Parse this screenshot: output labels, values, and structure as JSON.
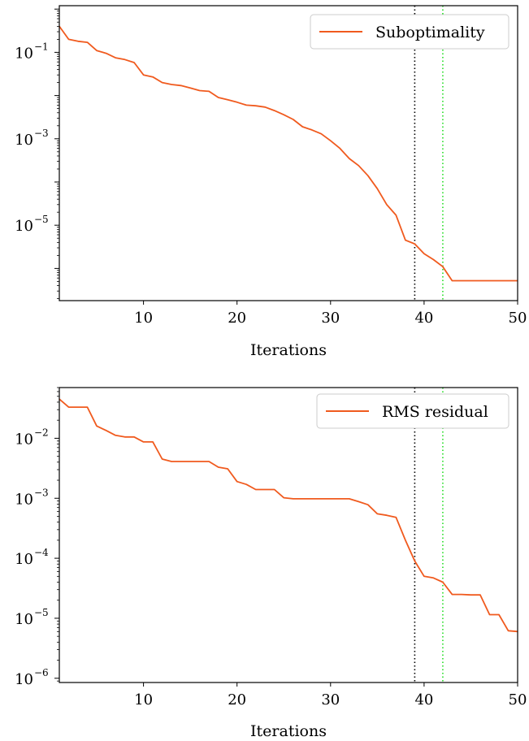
{
  "chart_data": [
    {
      "type": "line",
      "xlabel": "Iterations",
      "ylabel": "",
      "xlim": [
        1,
        50
      ],
      "ylim": [
        1.8e-07,
        1.2
      ],
      "yscale": "log",
      "xticks": [
        10,
        20,
        30,
        40,
        50
      ],
      "yticks": [
        {
          "base": "10",
          "exp": "−1",
          "value": 0.1
        },
        {
          "base": "10",
          "exp": "−3",
          "value": 0.001
        },
        {
          "base": "10",
          "exp": "−5",
          "value": 1e-05
        }
      ],
      "grid": false,
      "legend": "upper right",
      "vlines": [
        {
          "x": 39,
          "color": "#000000",
          "style": "dotted"
        },
        {
          "x": 42,
          "color": "#22dd22",
          "style": "dotted"
        }
      ],
      "series": [
        {
          "name": "Suboptimality",
          "color": "#f05a1e",
          "x": [
            1,
            2,
            3,
            4,
            5,
            6,
            7,
            8,
            9,
            10,
            11,
            12,
            13,
            14,
            15,
            16,
            17,
            18,
            19,
            20,
            21,
            22,
            23,
            24,
            25,
            26,
            27,
            28,
            29,
            30,
            31,
            32,
            33,
            34,
            35,
            36,
            37,
            38,
            39,
            40,
            41,
            42,
            43,
            44,
            45,
            46,
            47,
            48,
            49,
            50
          ],
          "values": [
            0.4,
            0.2,
            0.18,
            0.17,
            0.11,
            0.095,
            0.075,
            0.068,
            0.058,
            0.03,
            0.027,
            0.02,
            0.018,
            0.017,
            0.015,
            0.013,
            0.0125,
            0.009,
            0.008,
            0.007,
            0.006,
            0.0058,
            0.0054,
            0.0045,
            0.0036,
            0.0028,
            0.0019,
            0.0016,
            0.0013,
            0.0009,
            0.0006,
            0.00035,
            0.00024,
            0.00014,
            7e-05,
            3e-05,
            1.7e-05,
            4.5e-06,
            3.7e-06,
            2.2e-06,
            1.6e-06,
            1.1e-06,
            5.2e-07,
            5.2e-07,
            5.2e-07,
            5.2e-07,
            5.2e-07,
            5.2e-07,
            5.2e-07,
            5.2e-07
          ]
        }
      ]
    },
    {
      "type": "line",
      "xlabel": "Iterations",
      "ylabel": "",
      "xlim": [
        1,
        50
      ],
      "ylim": [
        8.5e-07,
        0.07
      ],
      "yscale": "log",
      "xticks": [
        10,
        20,
        30,
        40,
        50
      ],
      "yticks": [
        {
          "base": "10",
          "exp": "−2",
          "value": 0.01
        },
        {
          "base": "10",
          "exp": "−3",
          "value": 0.001
        },
        {
          "base": "10",
          "exp": "−4",
          "value": 0.0001
        },
        {
          "base": "10",
          "exp": "−5",
          "value": 1e-05
        },
        {
          "base": "10",
          "exp": "−6",
          "value": 1e-06
        }
      ],
      "grid": false,
      "legend": "upper right",
      "vlines": [
        {
          "x": 39,
          "color": "#000000",
          "style": "dotted"
        },
        {
          "x": 42,
          "color": "#22dd22",
          "style": "dotted"
        }
      ],
      "series": [
        {
          "name": "RMS residual",
          "color": "#f05a1e",
          "x": [
            1,
            2,
            3,
            4,
            5,
            6,
            7,
            8,
            9,
            10,
            11,
            12,
            13,
            14,
            15,
            16,
            17,
            18,
            19,
            20,
            21,
            22,
            23,
            24,
            25,
            26,
            27,
            28,
            29,
            30,
            31,
            32,
            33,
            34,
            35,
            36,
            37,
            38,
            39,
            40,
            41,
            42,
            43,
            44,
            45,
            46,
            47,
            48,
            49,
            50
          ],
          "values": [
            0.045,
            0.033,
            0.033,
            0.033,
            0.016,
            0.0135,
            0.0112,
            0.0105,
            0.0105,
            0.0087,
            0.0087,
            0.0045,
            0.0041,
            0.0041,
            0.0041,
            0.0041,
            0.0041,
            0.0033,
            0.0031,
            0.0019,
            0.0017,
            0.0014,
            0.0014,
            0.0014,
            0.00102,
            0.00098,
            0.00098,
            0.00098,
            0.00098,
            0.00098,
            0.00098,
            0.00098,
            0.00088,
            0.00078,
            0.00055,
            0.00052,
            0.00048,
            0.0002,
            9e-05,
            5e-05,
            4.7e-05,
            4e-05,
            2.5e-05,
            2.5e-05,
            2.45e-05,
            2.45e-05,
            1.15e-05,
            1.15e-05,
            6.2e-06,
            6e-06
          ]
        }
      ]
    }
  ]
}
